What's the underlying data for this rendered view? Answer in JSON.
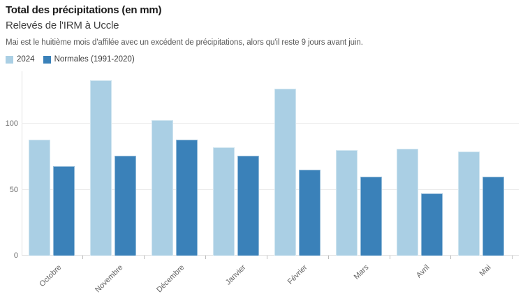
{
  "header": {
    "title": "Total des précipitations (en mm)",
    "subtitle": "Relevés de l'IRM à Uccle",
    "description": "Mai est le huitième mois d'affilée avec un excédent de précipitations, alors qu'il reste 9 jours avant juin."
  },
  "chart_data": {
    "type": "bar",
    "title": "Total des précipitations (en mm)",
    "subtitle": "Relevés de l'IRM à Uccle",
    "categories": [
      "Octobre",
      "Novembre",
      "Décembre",
      "Janvier",
      "Février",
      "Mars",
      "Avril",
      "Mai"
    ],
    "series": [
      {
        "name": "2024",
        "color": "#aacfe4",
        "values": [
          88,
          133,
          103,
          82,
          127,
          80,
          81,
          79
        ]
      },
      {
        "name": "Normales (1991-2020)",
        "color": "#3a81b9",
        "values": [
          68,
          76,
          88,
          76,
          65,
          60,
          47,
          60
        ]
      }
    ],
    "xlabel": "",
    "ylabel": "",
    "ylim": [
      0,
      140
    ],
    "yticks": [
      0,
      50,
      100
    ],
    "grid": true,
    "legend_position": "top-left",
    "background": "#ffffff"
  }
}
